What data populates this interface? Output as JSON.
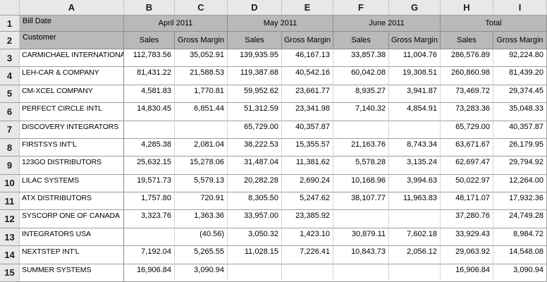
{
  "column_letters": [
    "A",
    "B",
    "C",
    "D",
    "E",
    "F",
    "G",
    "H",
    "I"
  ],
  "row_numbers": [
    "1",
    "2",
    "3",
    "4",
    "5",
    "6",
    "7",
    "8",
    "9",
    "10",
    "11",
    "12",
    "13",
    "14",
    "15"
  ],
  "pivot": {
    "row1_label": "Bill Date",
    "row2_label": "Customer",
    "groups": [
      {
        "label": "April 2011"
      },
      {
        "label": "May 2011"
      },
      {
        "label": "June 2011"
      },
      {
        "label": "Total"
      }
    ],
    "subheaders": [
      "Sales",
      "Gross Margin"
    ],
    "rows": [
      {
        "customer": "CARMICHAEL INTERNATIONAL",
        "values": [
          "112,783.56",
          "35,052.91",
          "139,935.95",
          "46,167.13",
          "33,857.38",
          "11,004.76",
          "286,576.89",
          "92,224.80"
        ]
      },
      {
        "customer": "LEH-CAR & COMPANY",
        "values": [
          "81,431.22",
          "21,588.53",
          "119,387.68",
          "40,542.16",
          "60,042.08",
          "19,308.51",
          "260,860.98",
          "81,439.20"
        ]
      },
      {
        "customer": "CM-XCEL COMPANY",
        "values": [
          "4,581.83",
          "1,770.81",
          "59,952.62",
          "23,661.77",
          "8,935.27",
          "3,941.87",
          "73,469.72",
          "29,374.45"
        ]
      },
      {
        "customer": "PERFECT CIRCLE INTL",
        "values": [
          "14,830.45",
          "6,851.44",
          "51,312.59",
          "23,341.98",
          "7,140.32",
          "4,854.91",
          "73,283.36",
          "35,048.33"
        ]
      },
      {
        "customer": "DISCOVERY INTEGRATORS",
        "values": [
          "",
          "",
          "65,729.00",
          "40,357.87",
          "",
          "",
          "65,729.00",
          "40,357.87"
        ]
      },
      {
        "customer": "FIRSTSYS INT'L",
        "values": [
          "4,285.38",
          "2,081.04",
          "38,222.53",
          "15,355.57",
          "21,163.76",
          "8,743.34",
          "63,671.67",
          "26,179.95"
        ]
      },
      {
        "customer": "123GO DISTRIBUTORS",
        "values": [
          "25,632.15",
          "15,278.06",
          "31,487.04",
          "11,381.62",
          "5,578.28",
          "3,135.24",
          "62,697.47",
          "29,794.92"
        ]
      },
      {
        "customer": "LILAC SYSTEMS",
        "values": [
          "19,571.73",
          "5,579.13",
          "20,282.28",
          "2,690.24",
          "10,168.96",
          "3,994.63",
          "50,022.97",
          "12,264.00"
        ]
      },
      {
        "customer": "ATX DISTRIBUTORS",
        "values": [
          "1,757.80",
          "720.91",
          "8,305.50",
          "5,247.62",
          "38,107.77",
          "11,963.83",
          "48,171.07",
          "17,932.36"
        ]
      },
      {
        "customer": "SYSCORP ONE OF CANADA",
        "values": [
          "3,323.76",
          "1,363.36",
          "33,957.00",
          "23,385.92",
          "",
          "",
          "37,280.76",
          "24,749.28"
        ]
      },
      {
        "customer": "INTEGRATORS USA",
        "values": [
          "",
          "(40.56)",
          "3,050.32",
          "1,423.10",
          "30,879.11",
          "7,602.18",
          "33,929.43",
          "8,984.72"
        ]
      },
      {
        "customer": "NEXTSTEP INT'L",
        "values": [
          "7,192.04",
          "5,265.55",
          "11,028.15",
          "7,226.41",
          "10,843.73",
          "2,056.12",
          "29,063.92",
          "14,548.08"
        ]
      },
      {
        "customer": "SUMMER SYSTEMS",
        "values": [
          "16,906.84",
          "3,090.94",
          "",
          "",
          "",
          "",
          "16,906.84",
          "3,090.94"
        ]
      }
    ]
  },
  "colors": {
    "frame_header_bg": "#e8e8e8",
    "pivot_header_bg": "#b9b9b9",
    "cell_bg": "#ffffff",
    "grid_line_light": "#d4d4d4",
    "grid_line_medium": "#9e9e9e",
    "grid_line_dark": "#8d8d8d",
    "frame_line": "#c6c6c6",
    "text": "#000000"
  }
}
